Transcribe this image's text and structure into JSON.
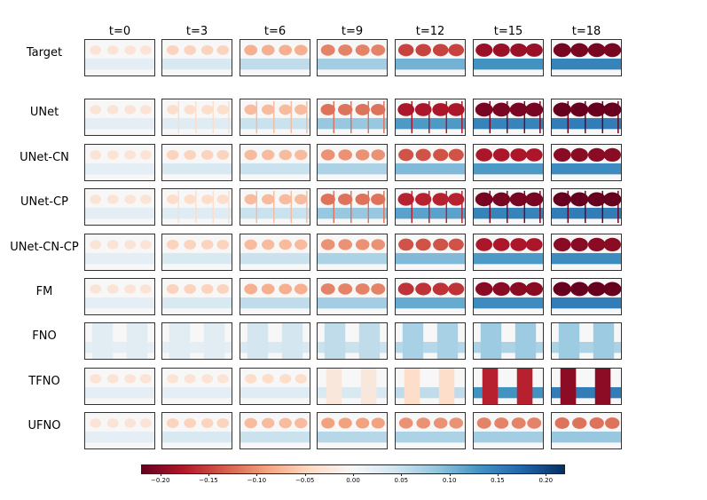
{
  "chart_data": {
    "type": "heatmap",
    "title": "",
    "columns": [
      "t=0",
      "t=3",
      "t=6",
      "t=9",
      "t=12",
      "t=15",
      "t=18"
    ],
    "rows": [
      "Target",
      "UNet",
      "UNet-CN",
      "UNet-CP",
      "UNet-CN-CP",
      "FM",
      "FNO",
      "TFNO",
      "UFNO"
    ],
    "estimated_field_amplitude": {
      "Target": [
        0.03,
        0.05,
        0.08,
        0.11,
        0.15,
        0.19,
        0.21
      ],
      "UNet": [
        0.03,
        0.04,
        0.07,
        0.12,
        0.18,
        0.21,
        0.22
      ],
      "UNet-CN": [
        0.03,
        0.05,
        0.07,
        0.1,
        0.14,
        0.18,
        0.2
      ],
      "UNet-CP": [
        0.03,
        0.04,
        0.07,
        0.12,
        0.17,
        0.21,
        0.22
      ],
      "UNet-CN-CP": [
        0.03,
        0.05,
        0.07,
        0.1,
        0.14,
        0.18,
        0.2
      ],
      "FM": [
        0.03,
        0.05,
        0.08,
        0.11,
        0.16,
        0.2,
        0.22
      ],
      "FNO": [
        0.03,
        0.03,
        0.05,
        0.07,
        0.09,
        0.1,
        0.1
      ],
      "TFNO": [
        0.03,
        0.03,
        0.04,
        0.05,
        0.08,
        0.19,
        0.22
      ],
      "UFNO": [
        0.03,
        0.05,
        0.07,
        0.09,
        0.1,
        0.11,
        0.12
      ]
    },
    "colorbar": {
      "colormap": "RdBu",
      "range": [
        -0.22,
        0.22
      ],
      "ticks": [
        -0.2,
        -0.15,
        -0.1,
        -0.05,
        0.0,
        0.05,
        0.1,
        0.15,
        0.2
      ],
      "tick_labels": [
        "−0.20",
        "−0.15",
        "−0.10",
        "−0.05",
        "0.00",
        "0.05",
        "0.10",
        "0.15",
        "0.20"
      ]
    }
  }
}
